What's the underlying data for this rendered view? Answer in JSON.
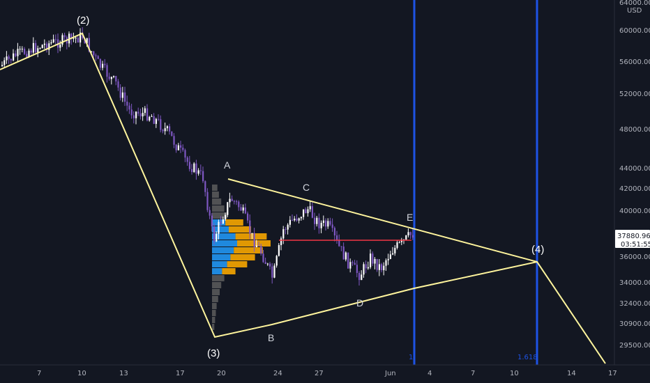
{
  "chart_data": {
    "type": "candlestick",
    "currency": "USD",
    "y_axis": {
      "scale": "log",
      "ticks": [
        "64000.00",
        "60000.00",
        "56000.00",
        "52000.00",
        "48000.00",
        "44000.00",
        "42000.00",
        "40000.00",
        "36000.00",
        "34000.00",
        "32400.00",
        "30900.00",
        "29500.00"
      ],
      "range": [
        28800,
        64000
      ],
      "position": "right"
    },
    "x_axis": {
      "ticks": [
        "7",
        "10",
        "13",
        "17",
        "20",
        "24",
        "27",
        "Jun",
        "4",
        "7",
        "10",
        "14",
        "17"
      ]
    },
    "price_label": {
      "price": "37880.96",
      "countdown": "03:51:55"
    },
    "wave_labels": [
      {
        "text": "(2)",
        "date": "10",
        "price": 60300
      },
      {
        "text": "(3)",
        "date": "19",
        "price": 28900
      },
      {
        "text": "(4)",
        "date": "11 Jun",
        "price": 36400
      }
    ],
    "point_labels": [
      {
        "text": "A",
        "price": 44100
      },
      {
        "text": "B",
        "price": 29400
      },
      {
        "text": "C",
        "price": 41800
      },
      {
        "text": "D",
        "price": 32900
      },
      {
        "text": "E",
        "price": 39500
      }
    ],
    "fib_time_lines": [
      {
        "label": "1",
        "color": "#1e53e5"
      },
      {
        "label": "1.618",
        "color": "#1e53e5"
      }
    ],
    "poc_price": 37600,
    "colors": {
      "background": "#131722",
      "candle_up": "#ffffff",
      "candle_down": "#7e57c2",
      "trendline": "#fff59d",
      "poc_line": "#f23645",
      "volume_profile_up": "#2196f3",
      "volume_profile_down": "#f7a600",
      "volume_profile_outside": "#5d5d5d",
      "fib_line": "#1e53e5"
    }
  }
}
